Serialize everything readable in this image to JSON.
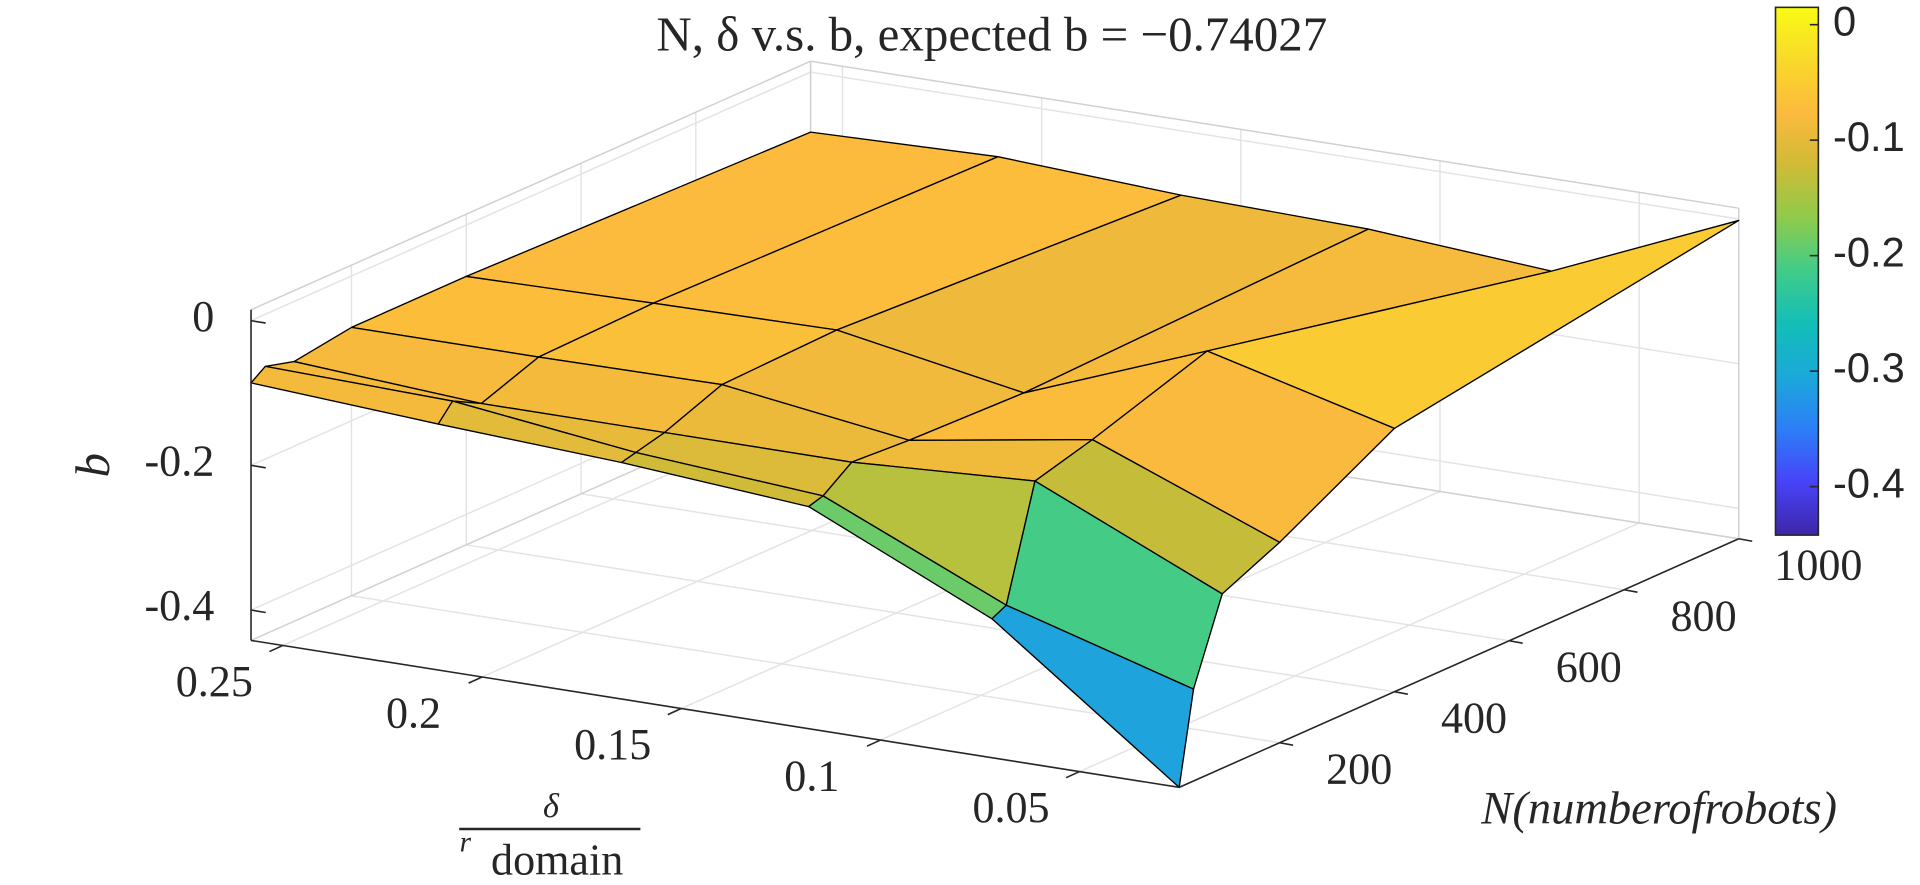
{
  "chart_data": {
    "type": "surface",
    "title": "N, δ v.s. b, expected b = −0.74027",
    "xlabel": {
      "numerator": "δ",
      "denominator_sup": "r",
      "denominator": "domain"
    },
    "ylabel": "N(numberofrobots)",
    "zlabel": "b",
    "x": [
      0.025,
      0.072,
      0.118,
      0.165,
      0.211,
      0.258
    ],
    "y": [
      25,
      50,
      100,
      200,
      400,
      1000
    ],
    "z": [
      [
        -0.442,
        -0.25,
        -0.135,
        -0.115,
        -0.102,
        -0.086
      ],
      [
        -0.315,
        -0.24,
        -0.129,
        -0.11,
        -0.079,
        -0.072
      ],
      [
        -0.201,
        -0.086,
        -0.1,
        -0.1,
        -0.1,
        -0.083
      ],
      [
        -0.165,
        -0.064,
        -0.105,
        -0.069,
        -0.071,
        -0.071
      ],
      [
        -0.078,
        -0.012,
        -0.11,
        -0.064,
        -0.067,
        -0.071
      ],
      [
        -0.002,
        -0.113,
        -0.095,
        -0.089,
        -0.076,
        -0.083
      ]
    ],
    "xlim": [
      0.025,
      0.258
    ],
    "ylim": [
      25,
      1000
    ],
    "zlim": [
      -0.442,
      0.015
    ],
    "xticks": [
      0.05,
      0.1,
      0.15,
      0.2,
      0.25
    ],
    "yticks": [
      200,
      400,
      600,
      800,
      1000
    ],
    "zticks": [
      -0.4,
      -0.2,
      0
    ],
    "grid": true,
    "edge_color": "#000000",
    "colormap": [
      "#3e26a8",
      "#4743f8",
      "#2c7ef7",
      "#1ba9d9",
      "#13beb8",
      "#3fcc8a",
      "#8ecb4b",
      "#cfbb37",
      "#fcba3d",
      "#f9d92a",
      "#f9fb15"
    ],
    "colorbar": {
      "clim": [
        -0.442,
        0.015
      ],
      "ticks": [
        -0.4,
        -0.3,
        -0.2,
        -0.1,
        0
      ]
    }
  }
}
